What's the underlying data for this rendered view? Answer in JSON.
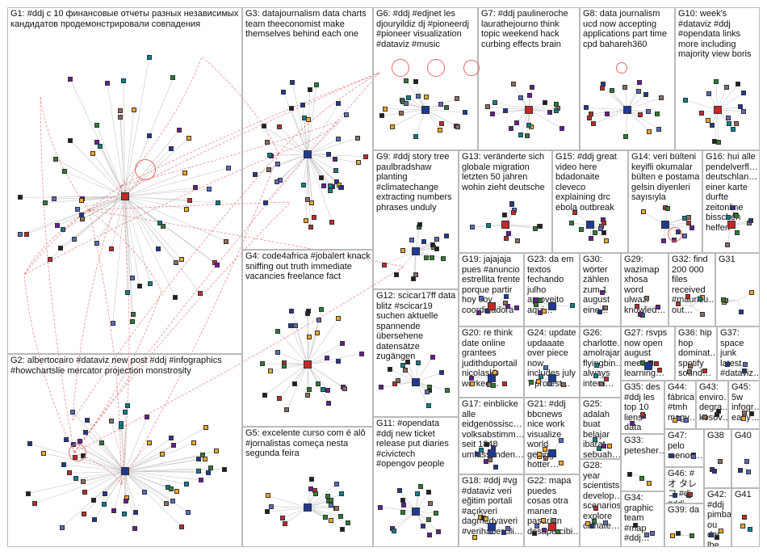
{
  "graph": {
    "groups": [
      {
        "id": "G1",
        "text": "G1: #ddj с 10 финансовые отчеты разных независимых кандидатов продемонстрировали совпадения"
      },
      {
        "id": "G2",
        "text": "G2: albertocairo #dataviz new post #ddj #infographics #howchartslie mercator projection monstrosity"
      },
      {
        "id": "G3",
        "text": "G3: datajournalism data charts team theeconomist make themselves behind each one"
      },
      {
        "id": "G4",
        "text": "G4: code4africa #jobalert knack sniffing out truth immediate vacancies freelance fact"
      },
      {
        "id": "G5",
        "text": "G5: excelente curso com é alô #jornalistas começa nesta segunda feira"
      },
      {
        "id": "G6",
        "text": "G6: #ddj #edjnet les djouryildiz dj #pioneerdj #pioneer visualization #dataviz #music"
      },
      {
        "id": "G7",
        "text": "G7: #ddj paulineroche laurathejourno think topic weekend hack curbing effects brain"
      },
      {
        "id": "G8",
        "text": "G8: data journalism ucd now accepting applications part time cpd bahareh360"
      },
      {
        "id": "G9",
        "text": "G9: #ddj story tree paulbradshaw planting #climatechange extracting numbers phrases unduly"
      },
      {
        "id": "G10",
        "text": "G10: week's #dataviz #ddj #opendata links more including majority view boris"
      },
      {
        "id": "G11",
        "text": "G11: #opendata #ddj new ticket release put diaries #civictech #opengov people"
      },
      {
        "id": "G12",
        "text": "G12: scicar17ff data blitz #scicar19 suchen aktuelle spannende übersehene datensätze zugängen"
      },
      {
        "id": "G13",
        "text": "G13: veränderte sich globale migration letzten 50 jahren wohin zieht deutsche"
      },
      {
        "id": "G14",
        "text": "G14: veri bülteni keyifli okumalar bülten e postama gelsin diyenleri sayısıyla"
      },
      {
        "id": "G15",
        "text": "G15: #ddj great video here bdadonaite cleveco explaining drc ebola outbreak"
      },
      {
        "id": "G16",
        "text": "G16: hui alle pendelverfl… deutschlan… einer karte durfte zeitonline bisschen helfen"
      },
      {
        "id": "G17",
        "text": "G17: einblicke alle eidgenössisc… volksabstimm… seit 1848 umfassenden…"
      },
      {
        "id": "G18",
        "text": "G18: #ddj #vg #dataviz veri eğitim portali #açıkveri dagmedyaveri #verihabercili…"
      },
      {
        "id": "G19",
        "text": "G19: jajajaja pues #anuncio estrellita frente porque partir hoy soy coordinadora"
      },
      {
        "id": "G20",
        "text": "G20: re think date online grantees judithduportail nicolaskb worked…"
      },
      {
        "id": "G21",
        "text": "G21: #ddj bbcnews nice work visualize world getting hotter…"
      },
      {
        "id": "G22",
        "text": "G22: mapa puedes cosas otra manera pasarían desapercibi…"
      },
      {
        "id": "G23",
        "text": "G23: da em textos fechando julho aproveito aqui…"
      },
      {
        "id": "G24",
        "text": "G24: update updaaate over piece now includes july 7 protest…"
      },
      {
        "id": "G25",
        "text": "G25: adalah buat belajar ibarat sebuah…"
      },
      {
        "id": "G26",
        "text": "G26: charlotte… amolrajan flyingbin… always intern…"
      },
      {
        "id": "G27",
        "text": "G27: rsvps now open august meetup learning…"
      },
      {
        "id": "G28",
        "text": "G28: year scientists develop… scenarios explore climate…"
      },
      {
        "id": "G29",
        "text": "G29: wazimap xhosa word ulwazi knowled…"
      },
      {
        "id": "G30",
        "text": "G30: wörter zählen zum 1 august eine…"
      },
      {
        "id": "G31",
        "text": "G31"
      },
      {
        "id": "G32",
        "text": "G32: find 200 000 files received #mauritiu… out…"
      },
      {
        "id": "G33",
        "text": "G33: petesher…"
      },
      {
        "id": "G34",
        "text": "G34: graphic team #map #ddj…"
      },
      {
        "id": "G35",
        "text": "G35: des #ddj les top 10 liens data journalis…"
      },
      {
        "id": "G36",
        "text": "G36: hip hop dominat… spotify sound…"
      },
      {
        "id": "G37",
        "text": "G37: space junk latest #dataviz…"
      },
      {
        "id": "G38",
        "text": "G38"
      },
      {
        "id": "G39",
        "text": "G39: da"
      },
      {
        "id": "G40",
        "text": "G40"
      },
      {
        "id": "G41",
        "text": "G41"
      },
      {
        "id": "G42",
        "text": "G42: #ddj pimba ou dar lhe…"
      },
      {
        "id": "G43",
        "text": "G43: enviro… degra… kosov…"
      },
      {
        "id": "G44",
        "text": "G44: fábrica #tmh magy…"
      },
      {
        "id": "G45",
        "text": "G45: 5w infogr… early…"
      },
      {
        "id": "G46",
        "text": "G46: #オ タレコ #dj #ddj…"
      },
      {
        "id": "G47",
        "text": "G47: pelo menos…"
      }
    ],
    "colors": {
      "border": "#b9b9b9",
      "edge": "#c8c8c8",
      "highlight_edge": "#e04040",
      "node_palette": [
        "#1f3a93",
        "#2e7d32",
        "#6a1b9a",
        "#f9a825",
        "#00838f",
        "#c62828",
        "#212121",
        "#5c6bc0",
        "#8d6e63"
      ]
    }
  }
}
